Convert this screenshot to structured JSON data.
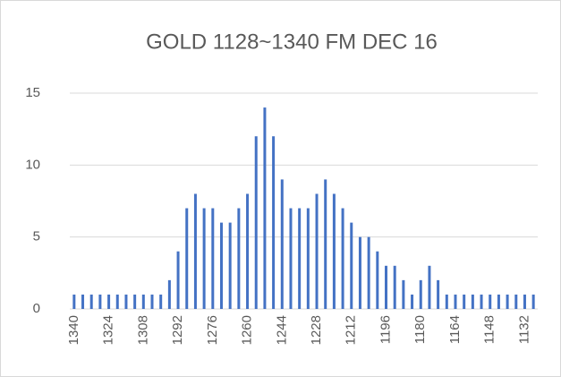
{
  "chart_data": {
    "type": "bar",
    "title": "GOLD 1128~1340 FM DEC 16",
    "categories": [
      "1340",
      null,
      null,
      null,
      "1324",
      null,
      null,
      null,
      "1308",
      null,
      null,
      null,
      "1292",
      null,
      null,
      null,
      "1276",
      null,
      null,
      null,
      "1260",
      null,
      null,
      null,
      "1244",
      null,
      null,
      null,
      "1228",
      null,
      null,
      null,
      "1212",
      null,
      null,
      null,
      "1196",
      null,
      null,
      null,
      "1180",
      null,
      null,
      null,
      "1164",
      null,
      null,
      null,
      "1148",
      null,
      null,
      null,
      "1132",
      null
    ],
    "values": [
      1,
      1,
      1,
      1,
      1,
      1,
      1,
      1,
      1,
      1,
      1,
      2,
      4,
      7,
      8,
      7,
      7,
      6,
      6,
      7,
      8,
      12,
      14,
      12,
      9,
      7,
      7,
      7,
      8,
      9,
      8,
      7,
      6,
      5,
      5,
      4,
      3,
      3,
      2,
      1,
      2,
      3,
      2,
      1,
      1,
      1,
      1,
      1,
      1,
      1,
      1,
      1,
      1,
      1
    ],
    "color": "#4472c4",
    "ylim": [
      0,
      15
    ],
    "yticks": [
      0,
      5,
      10,
      15
    ],
    "grid": true
  }
}
